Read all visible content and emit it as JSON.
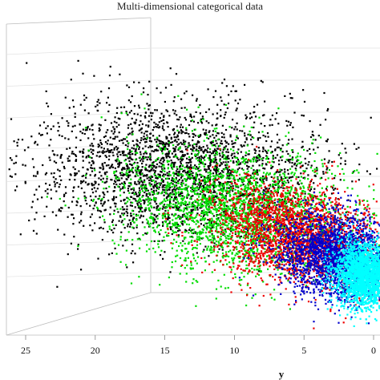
{
  "chart_data": {
    "type": "scatter",
    "title": "Multi-dimensional categorical data",
    "xlabel": "y",
    "x_ticks": [
      "25",
      "20",
      "15",
      "10",
      "5",
      "0"
    ],
    "xlim": [
      29,
      0
    ],
    "series": [
      {
        "color": "#000000",
        "cx": 14.2,
        "cy": 212,
        "sx": 5.2,
        "sy": 44,
        "n": 2600,
        "rot": 0.08
      },
      {
        "color": "#00dd00",
        "cx": 9.8,
        "cy": 262,
        "sx": 4.2,
        "sy": 38,
        "n": 2600,
        "rot": 0.25
      },
      {
        "color": "#ee0000",
        "cx": 5.6,
        "cy": 292,
        "sx": 2.9,
        "sy": 30,
        "n": 2200,
        "rot": 0.28
      },
      {
        "color": "#0000cc",
        "cx": 2.6,
        "cy": 320,
        "sx": 2.2,
        "sy": 26,
        "n": 2400,
        "rot": 0.3
      },
      {
        "color": "#00ffff",
        "cx": 0.7,
        "cy": 342,
        "sx": 1.1,
        "sy": 20,
        "n": 2300,
        "rot": 0.2
      }
    ]
  }
}
